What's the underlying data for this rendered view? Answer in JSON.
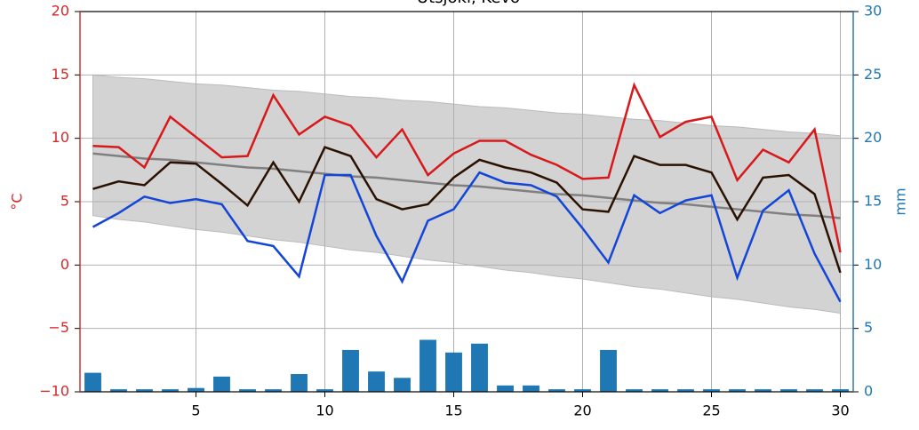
{
  "chart_data": {
    "type": "line",
    "title": "Utsjoki, Kevo",
    "ylabel": "°C",
    "y2label": "mm",
    "x": [
      1,
      2,
      3,
      4,
      5,
      6,
      7,
      8,
      9,
      10,
      11,
      12,
      13,
      14,
      15,
      16,
      17,
      18,
      19,
      20,
      21,
      22,
      23,
      24,
      25,
      26,
      27,
      28,
      29,
      30
    ],
    "xlim": [
      0.5,
      30.5
    ],
    "xticks": [
      5,
      10,
      15,
      20,
      25,
      30
    ],
    "ylim": [
      -10,
      20
    ],
    "yticks": [
      {
        "value": -10,
        "label": "−10"
      },
      {
        "value": -5,
        "label": "−5"
      },
      0,
      5,
      10,
      15,
      20
    ],
    "y2lim": [
      0,
      30
    ],
    "y2ticks": [
      0,
      5,
      10,
      15,
      20,
      25,
      30
    ],
    "grid": true,
    "left_axis_color": "#d62728",
    "right_axis_color": "#1f77b4",
    "band": {
      "color": "#d3d3d3",
      "upper": [
        15.0,
        14.8,
        14.7,
        14.5,
        14.3,
        14.2,
        14.0,
        13.8,
        13.7,
        13.5,
        13.3,
        13.2,
        13.0,
        12.9,
        12.7,
        12.5,
        12.4,
        12.2,
        12.0,
        11.9,
        11.7,
        11.5,
        11.4,
        11.2,
        11.0,
        10.9,
        10.7,
        10.5,
        10.4,
        10.2
      ],
      "lower": [
        3.9,
        3.6,
        3.4,
        3.1,
        2.8,
        2.6,
        2.3,
        2.0,
        1.8,
        1.5,
        1.2,
        1.0,
        0.7,
        0.4,
        0.2,
        -0.1,
        -0.4,
        -0.6,
        -0.9,
        -1.1,
        -1.4,
        -1.7,
        -1.9,
        -2.2,
        -2.5,
        -2.7,
        -3.0,
        -3.3,
        -3.5,
        -3.8
      ]
    },
    "series": [
      {
        "color": "#808080",
        "values": [
          8.8,
          8.6,
          8.4,
          8.3,
          8.1,
          7.9,
          7.7,
          7.6,
          7.4,
          7.2,
          7.0,
          6.9,
          6.7,
          6.5,
          6.3,
          6.2,
          6.0,
          5.8,
          5.6,
          5.5,
          5.3,
          5.1,
          4.9,
          4.8,
          4.6,
          4.4,
          4.2,
          4.0,
          3.9,
          3.7
        ]
      },
      {
        "color": "#d7191c",
        "values": [
          9.4,
          9.3,
          7.7,
          11.7,
          10.1,
          8.5,
          8.6,
          13.4,
          10.3,
          11.7,
          11.0,
          8.5,
          10.7,
          7.1,
          8.8,
          9.8,
          9.8,
          8.7,
          7.9,
          6.8,
          6.9,
          14.2,
          10.1,
          11.3,
          11.7,
          6.7,
          9.1,
          8.1,
          10.7,
          1.0
        ]
      },
      {
        "color": "#2b1100",
        "values": [
          6.0,
          6.6,
          6.3,
          8.1,
          8.0,
          6.4,
          4.7,
          8.1,
          5.0,
          9.3,
          8.6,
          5.2,
          4.4,
          4.8,
          6.9,
          8.3,
          7.7,
          7.3,
          6.5,
          4.4,
          4.2,
          8.6,
          7.9,
          7.9,
          7.3,
          3.6,
          6.9,
          7.1,
          5.6,
          -0.6
        ]
      },
      {
        "color": "#1346d8",
        "values": [
          3.0,
          4.1,
          5.4,
          4.9,
          5.2,
          4.8,
          1.9,
          1.5,
          -0.9,
          7.1,
          7.1,
          2.3,
          -1.3,
          3.5,
          4.4,
          7.3,
          6.5,
          6.3,
          5.4,
          2.9,
          0.2,
          5.5,
          4.1,
          5.1,
          5.5,
          -1.0,
          4.3,
          5.9,
          0.9,
          -2.9
        ]
      }
    ],
    "bars": {
      "axis": "y2",
      "color": "#1f77b4",
      "values": [
        1.5,
        0.2,
        0.2,
        0.2,
        0.3,
        1.2,
        0.2,
        0.2,
        1.4,
        0.2,
        3.3,
        1.6,
        1.1,
        4.1,
        3.1,
        3.8,
        0.5,
        0.5,
        0.2,
        0.2,
        3.3,
        0.2,
        0.2,
        0.2,
        0.2,
        0.2,
        0.2,
        0.2,
        0.2,
        0.2
      ]
    }
  }
}
